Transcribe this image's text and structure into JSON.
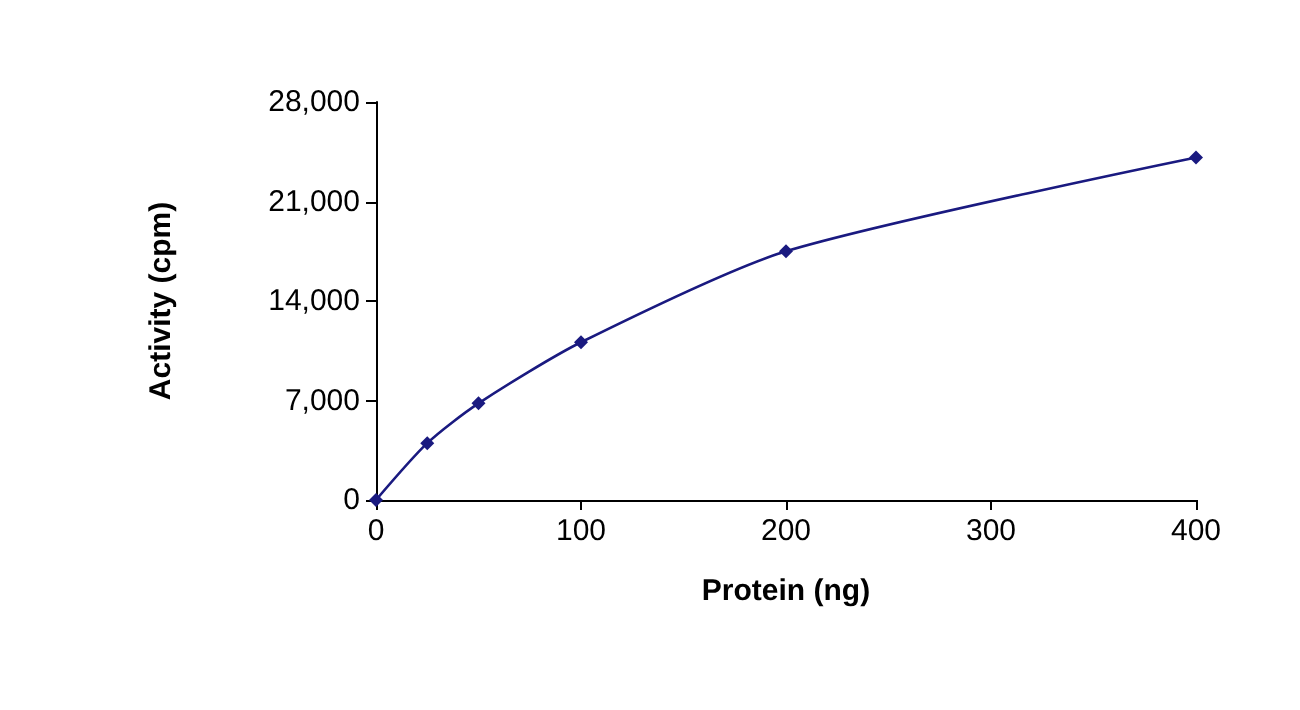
{
  "chart_data": {
    "type": "line",
    "xlabel": "Protein (ng)",
    "ylabel": "Activity (cpm)",
    "x": [
      0,
      25,
      50,
      100,
      200,
      400
    ],
    "series": [
      {
        "color": "#1a1a80",
        "values": [
          0,
          4000,
          6800,
          11100,
          17500,
          24100
        ]
      }
    ],
    "xlim": [
      0,
      400
    ],
    "xticks": [
      0,
      100,
      200,
      300,
      400
    ],
    "ylim": [
      0,
      28000
    ],
    "yticks": [
      0,
      {
        "value": 7000,
        "label": "7,000"
      },
      {
        "value": 14000,
        "label": "14,000"
      },
      {
        "value": 21000,
        "label": "21,000"
      },
      {
        "value": 28000,
        "label": "28,000"
      }
    ],
    "grid": false,
    "marker": "diamond",
    "line_style": "solid"
  }
}
